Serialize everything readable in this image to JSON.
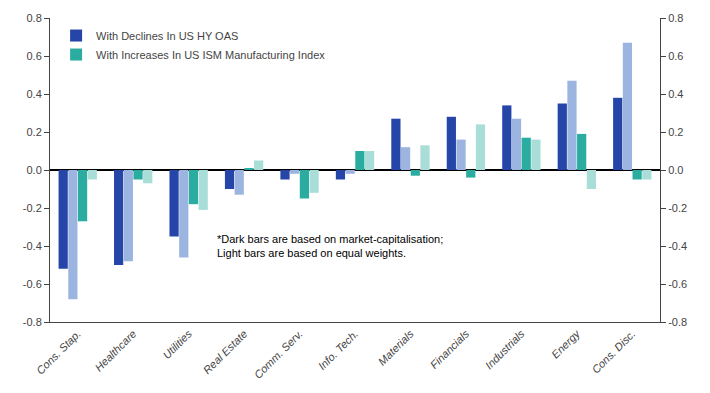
{
  "chart_data": {
    "type": "bar",
    "categories": [
      "Cons. Stap.",
      "Healthcare",
      "Utilities",
      "Real Estate",
      "Comm. Serv.",
      "Info. Tech.",
      "Materials",
      "Financials",
      "Industrials",
      "Energy",
      "Cons. Disc."
    ],
    "series": [
      {
        "name": "With Declines In US HY OAS",
        "color": "#2645A8",
        "values": [
          -0.52,
          -0.5,
          -0.35,
          -0.1,
          -0.05,
          -0.05,
          0.27,
          0.28,
          0.34,
          0.35,
          0.38
        ]
      },
      {
        "color": "#9BB4E0",
        "values": [
          -0.68,
          -0.48,
          -0.46,
          -0.13,
          -0.02,
          -0.02,
          0.12,
          0.16,
          0.27,
          0.47,
          0.67
        ]
      },
      {
        "name": "With Increases In US ISM Manufacturing Index",
        "color": "#2AADA0",
        "values": [
          -0.27,
          -0.05,
          -0.18,
          0.01,
          -0.15,
          0.1,
          -0.03,
          -0.04,
          0.17,
          0.19,
          -0.05
        ]
      },
      {
        "color": "#A8DDD8",
        "values": [
          -0.05,
          -0.07,
          -0.21,
          0.05,
          -0.12,
          0.1,
          0.13,
          0.24,
          0.16,
          -0.1,
          -0.05
        ]
      }
    ],
    "ylim": [
      -0.8,
      0.8
    ],
    "yticks": [
      -0.8,
      -0.6,
      -0.4,
      -0.2,
      {
        "value": 0,
        "label": "0.0"
      },
      0.2,
      0.4,
      0.6,
      0.8
    ],
    "y2lim": [
      -0.8,
      0.8
    ],
    "y2ticks": [
      -0.8,
      -0.6,
      -0.4,
      -0.2,
      {
        "value": 0,
        "label": "0.0"
      },
      0.2,
      0.4,
      0.6,
      0.8
    ],
    "grid": false,
    "legend": "upper left",
    "annotation": "*Dark bars are based on market-capitalisation;\nLight bars are based on equal weights."
  }
}
